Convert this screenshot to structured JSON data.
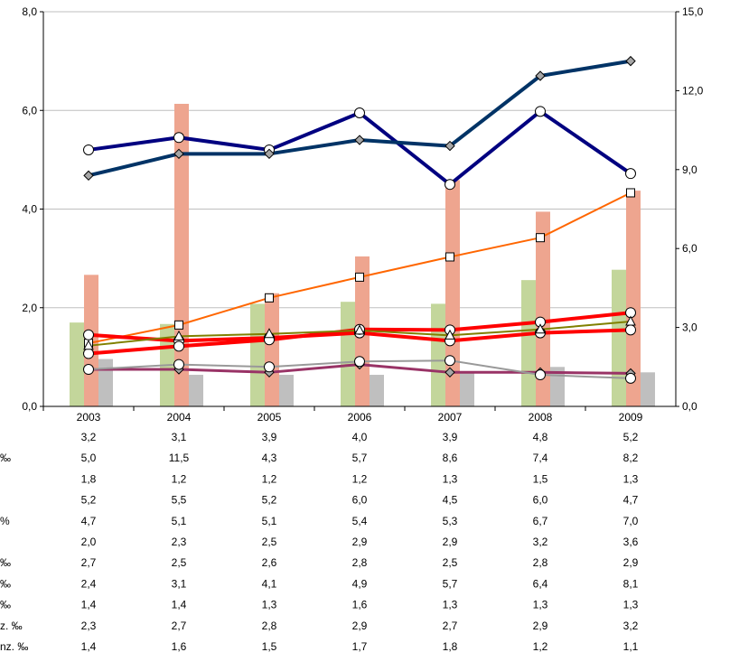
{
  "chart_data": {
    "type": "bar",
    "title": "",
    "x": [
      "2003",
      "2004",
      "2005",
      "2006",
      "2007",
      "2008",
      "2009"
    ],
    "y_left": {
      "range": [
        0,
        8
      ],
      "ticks": [
        "0,0",
        "2,0",
        "4,0",
        "6,0",
        "8,0"
      ]
    },
    "y_right": {
      "range": [
        0,
        15
      ],
      "ticks": [
        "0,0",
        "3,0",
        "6,0",
        "9,0",
        "12,0",
        "15,0"
      ]
    },
    "grid": true,
    "colors": {
      "bar_green": "#c3d69b",
      "bar_salmon": "#eea58f",
      "bar_gray": "#bfbfbf",
      "navy": "#000080",
      "darkblue": "#003366",
      "orange": "#ff6600",
      "red": "#ff0000",
      "olive": "#808000",
      "purple": "#993366",
      "gray_line": "#999999"
    },
    "table_rows": [
      {
        "label_visible": "",
        "values": [
          "3,2",
          "3,1",
          "3,9",
          "4,0",
          "3,9",
          "4,8",
          "5,2"
        ]
      },
      {
        "label_visible": "‰",
        "values": [
          "5,0",
          "11,5",
          "4,3",
          "5,7",
          "8,6",
          "7,4",
          "8,2"
        ]
      },
      {
        "label_visible": "",
        "values": [
          "1,8",
          "1,2",
          "1,2",
          "1,2",
          "1,3",
          "1,5",
          "1,3"
        ]
      },
      {
        "label_visible": "",
        "values": [
          "5,2",
          "5,5",
          "5,2",
          "6,0",
          "4,5",
          "6,0",
          "4,7"
        ]
      },
      {
        "label_visible": "%",
        "values": [
          "4,7",
          "5,1",
          "5,1",
          "5,4",
          "5,3",
          "6,7",
          "7,0"
        ]
      },
      {
        "label_visible": "",
        "values": [
          "2,0",
          "2,3",
          "2,5",
          "2,9",
          "2,9",
          "3,2",
          "3,6"
        ]
      },
      {
        "label_visible": "‰",
        "values": [
          "2,7",
          "2,5",
          "2,6",
          "2,8",
          "2,5",
          "2,8",
          "2,9"
        ]
      },
      {
        "label_visible": "‰",
        "values": [
          "2,4",
          "3,1",
          "4,1",
          "4,9",
          "5,7",
          "6,4",
          "8,1"
        ]
      },
      {
        "label_visible": "‰",
        "values": [
          "1,4",
          "1,4",
          "1,3",
          "1,6",
          "1,3",
          "1,3",
          "1,3"
        ]
      },
      {
        "label_visible": "z. ‰",
        "values": [
          "2,3",
          "2,7",
          "2,8",
          "2,9",
          "2,7",
          "2,9",
          "3,2"
        ]
      },
      {
        "label_visible": "nz. ‰",
        "values": [
          "1,4",
          "1,6",
          "1,5",
          "1,7",
          "1,8",
          "1,2",
          "1,1"
        ]
      }
    ],
    "bars": [
      {
        "axis": "left",
        "color_key": "bar_green",
        "values": [
          1.7,
          1.67,
          2.08,
          2.12,
          2.08,
          2.56,
          2.77
        ]
      },
      {
        "axis": "right",
        "color_key": "bar_salmon",
        "values": [
          5.0,
          11.5,
          4.3,
          5.7,
          8.6,
          7.4,
          8.2
        ]
      },
      {
        "axis": "left",
        "color_key": "bar_gray",
        "values": [
          0.96,
          0.64,
          0.64,
          0.64,
          0.69,
          0.8,
          0.69
        ]
      }
    ],
    "lines": [
      {
        "color_key": "navy",
        "width": 4,
        "marker": "circle",
        "values": [
          5.2,
          5.45,
          5.2,
          5.95,
          4.5,
          5.98,
          4.72
        ]
      },
      {
        "color_key": "darkblue",
        "width": 4,
        "marker": "diamond",
        "values": [
          4.68,
          5.12,
          5.12,
          5.4,
          5.28,
          6.7,
          7.0
        ]
      },
      {
        "color_key": "orange",
        "width": 2,
        "marker": "square",
        "values": [
          1.28,
          1.65,
          2.2,
          2.62,
          3.03,
          3.42,
          4.33
        ]
      },
      {
        "color_key": "red",
        "width": 4,
        "marker": "circle",
        "values": [
          1.45,
          1.33,
          1.39,
          1.49,
          1.33,
          1.49,
          1.55
        ]
      },
      {
        "color_key": "red",
        "width": 4,
        "marker": "circle",
        "values": [
          1.07,
          1.22,
          1.35,
          1.56,
          1.55,
          1.71,
          1.9
        ]
      },
      {
        "color_key": "olive",
        "width": 2,
        "marker": "triangle",
        "values": [
          1.23,
          1.42,
          1.47,
          1.54,
          1.44,
          1.56,
          1.72
        ]
      },
      {
        "color_key": "purple",
        "width": 3,
        "marker": "diamond",
        "values": [
          0.75,
          0.75,
          0.69,
          0.85,
          0.69,
          0.69,
          0.67
        ]
      },
      {
        "color_key": "gray_line",
        "width": 2,
        "marker": "circle",
        "values": [
          0.75,
          0.85,
          0.8,
          0.91,
          0.93,
          0.64,
          0.57
        ]
      }
    ]
  }
}
